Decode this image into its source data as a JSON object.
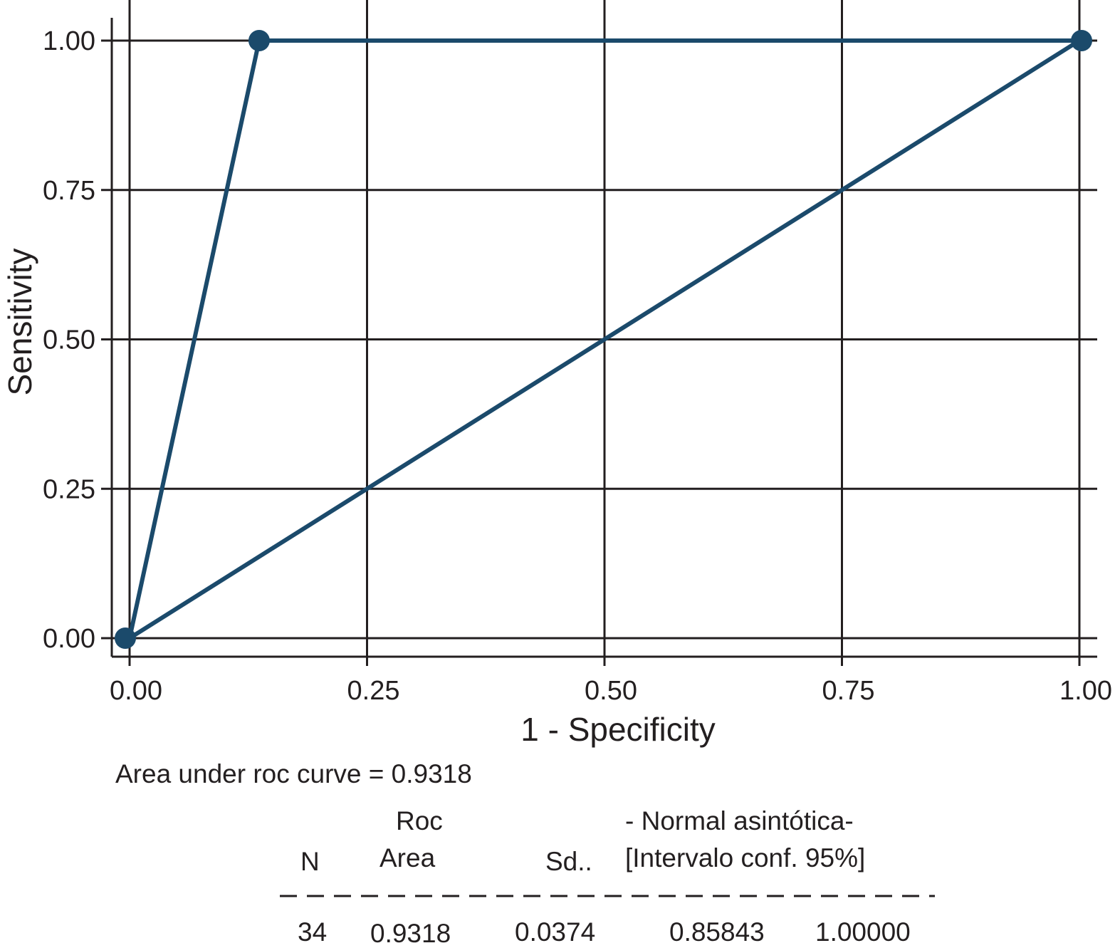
{
  "chart_data": {
    "type": "line",
    "xlabel": "1 - Specificity",
    "ylabel": "Sensitivity",
    "xlim": [
      0,
      1
    ],
    "ylim": [
      0,
      1
    ],
    "x_ticks": [
      "0.00",
      "0.25",
      "0.50",
      "0.75",
      "1.00"
    ],
    "y_ticks": [
      "0.00",
      "0.25",
      "0.50",
      "0.75",
      "1.00"
    ],
    "x_tick_values": [
      0,
      0.25,
      0.5,
      0.75,
      1
    ],
    "y_tick_values": [
      0,
      0.25,
      0.5,
      0.75,
      1
    ],
    "grid": true,
    "line_color": "#1b4a6b",
    "series": [
      {
        "x": [
          0,
          0.1364,
          1
        ],
        "y": [
          0,
          1,
          1
        ],
        "markers": true
      },
      {
        "x": [
          0,
          1
        ],
        "y": [
          0,
          1
        ],
        "markers": false
      }
    ]
  },
  "auc_text": "Area under roc curve = 0.9318",
  "table": {
    "headers": {
      "n": "N",
      "roc_line1": "Roc",
      "roc_line2": "Area",
      "sd": "Sd..",
      "normal_line1": "- Normal asintótica-",
      "normal_line2": "[Intervalo conf. 95%]"
    },
    "row": {
      "n": "34",
      "roc_area": "0.9318",
      "sd": "0.0374",
      "ci_low": "0.85843",
      "ci_high": "1.00000"
    }
  }
}
